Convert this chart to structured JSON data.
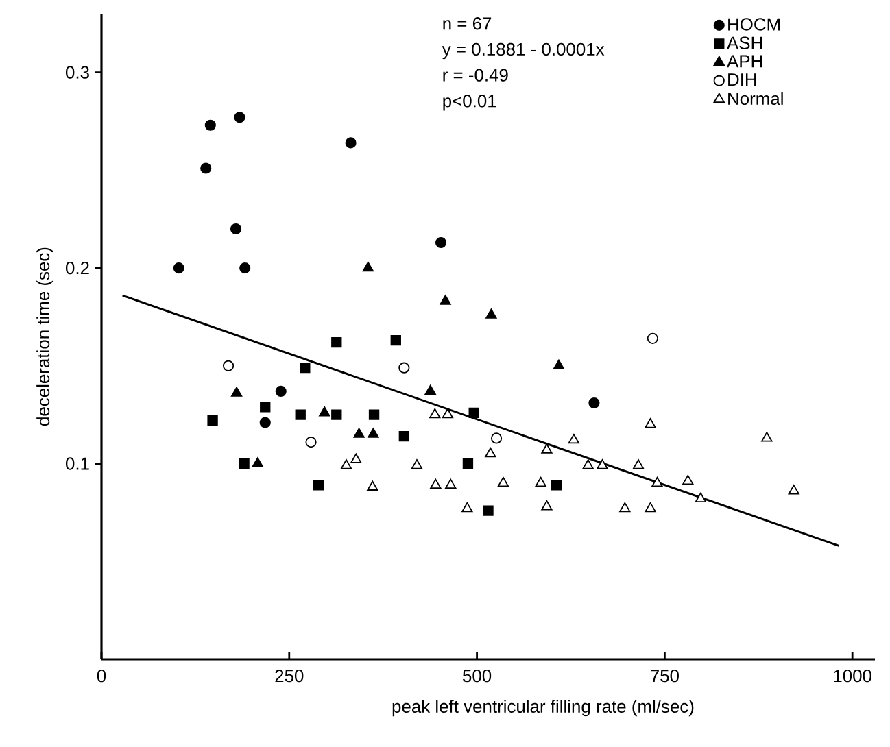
{
  "chart_data": {
    "type": "scatter",
    "xlabel": "peak left ventricular filling rate (ml/sec)",
    "ylabel": "deceleration time (sec)",
    "xlim": [
      0,
      1030
    ],
    "ylim": [
      0,
      0.33
    ],
    "xticks": [
      0,
      250,
      500,
      750,
      1000
    ],
    "yticks": [
      0.1,
      0.2,
      0.3
    ],
    "legend": "top right",
    "grid": false,
    "annotations": [
      "n = 67",
      "y = 0.1881 - 0.0001x",
      "r = -0.49",
      "p<0.01"
    ],
    "series": [
      {
        "name": "HOCM",
        "marker": "circle",
        "color": "#000000",
        "x": [
          145,
          184,
          139,
          332,
          179,
          452,
          103,
          191,
          239,
          218,
          656
        ],
        "values": [
          0.273,
          0.277,
          0.251,
          0.264,
          0.22,
          0.213,
          0.2,
          0.2,
          0.137,
          0.121,
          0.131
        ]
      },
      {
        "name": "ASH",
        "marker": "square",
        "color": "#000000",
        "x": [
          148,
          218,
          271,
          313,
          392,
          265,
          313,
          363,
          403,
          190,
          289,
          496,
          488,
          515,
          606
        ],
        "values": [
          0.122,
          0.129,
          0.149,
          0.162,
          0.163,
          0.125,
          0.125,
          0.125,
          0.114,
          0.1,
          0.089,
          0.126,
          0.1,
          0.076,
          0.089
        ]
      },
      {
        "name": "APH",
        "marker": "triangle",
        "color": "#000000",
        "x": [
          355,
          180,
          297,
          343,
          362,
          208,
          438,
          458,
          519,
          609
        ],
        "values": [
          0.2,
          0.136,
          0.126,
          0.115,
          0.115,
          0.1,
          0.137,
          0.183,
          0.176,
          0.15
        ]
      },
      {
        "name": "DIH",
        "marker": "circle",
        "color": "#ffffff",
        "x": [
          169,
          403,
          279,
          526,
          734
        ],
        "values": [
          0.15,
          0.149,
          0.111,
          0.113,
          0.164
        ]
      },
      {
        "name": "Normal",
        "marker": "triangle",
        "color": "#ffffff",
        "x": [
          326,
          339,
          361,
          420,
          444,
          461,
          445,
          465,
          487,
          518,
          731,
          886,
          629,
          593,
          535,
          585,
          648,
          667,
          715,
          740,
          781,
          798,
          922,
          593,
          697,
          731
        ],
        "values": [
          0.099,
          0.102,
          0.088,
          0.099,
          0.125,
          0.125,
          0.089,
          0.089,
          0.077,
          0.105,
          0.12,
          0.113,
          0.112,
          0.107,
          0.09,
          0.09,
          0.099,
          0.099,
          0.099,
          0.09,
          0.091,
          0.082,
          0.086,
          0.078,
          0.077,
          0.077
        ]
      },
      {
        "type": "line",
        "line_style": "solid",
        "marker": "none",
        "color": "#000000",
        "x": [
          28,
          982
        ],
        "values": [
          0.186,
          0.058
        ]
      }
    ]
  }
}
